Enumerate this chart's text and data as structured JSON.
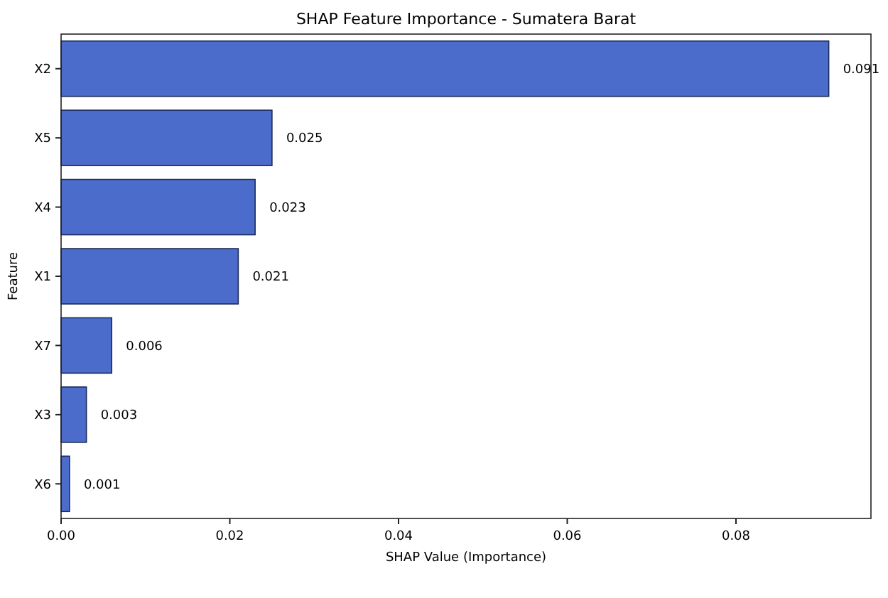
{
  "chart_data": {
    "type": "bar",
    "orientation": "horizontal",
    "title": "SHAP Feature Importance - Sumatera Barat",
    "xlabel": "SHAP Value (Importance)",
    "ylabel": "Feature",
    "categories": [
      "X2",
      "X5",
      "X4",
      "X1",
      "X7",
      "X3",
      "X6"
    ],
    "values": [
      0.091,
      0.025,
      0.023,
      0.021,
      0.006,
      0.003,
      0.001
    ],
    "color": "#4c6ccc",
    "data_labels": true,
    "xlim": [
      0,
      0.096
    ],
    "xticks": [
      {
        "value": 0,
        "label": "0.00"
      },
      {
        "value": 0.02,
        "label": "0.02"
      },
      {
        "value": 0.04,
        "label": "0.04"
      },
      {
        "value": 0.06,
        "label": "0.06"
      },
      {
        "value": 0.08,
        "label": "0.08"
      }
    ],
    "grid": false
  }
}
